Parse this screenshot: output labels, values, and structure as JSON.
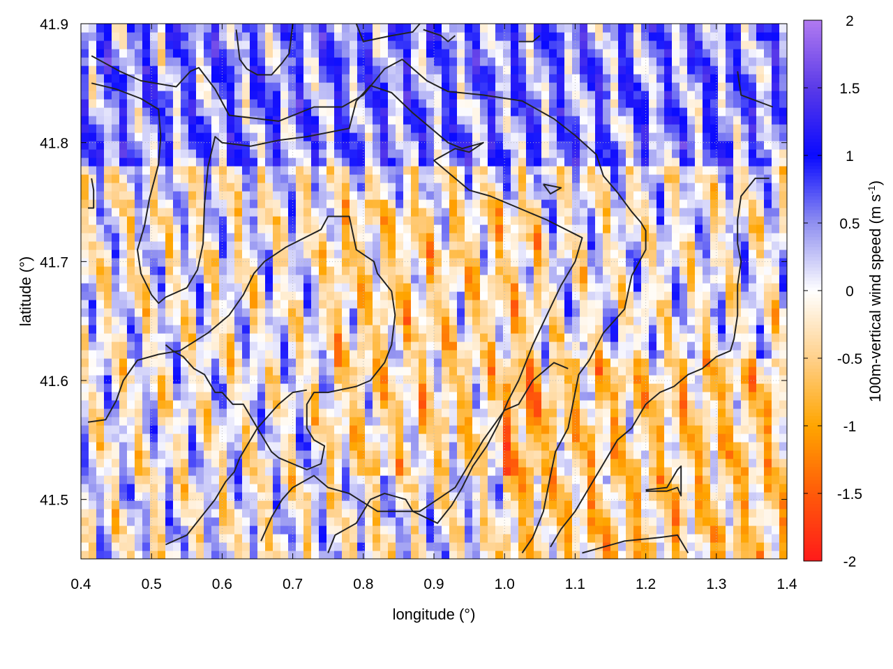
{
  "chart_data": {
    "type": "heatmap",
    "title": "",
    "xlabel": "longitude (°)",
    "ylabel": "latitude (°)",
    "colorbar_label": "100m-vertical wind speed (m s",
    "colorbar_label_sup": "-1",
    "colorbar_label_end": ")",
    "xlim": [
      0.4,
      1.4
    ],
    "ylim": [
      41.45,
      41.9
    ],
    "x_ticks": [
      0.4,
      0.5,
      0.6,
      0.7,
      0.8,
      0.9,
      1.0,
      1.1,
      1.2,
      1.3,
      1.4
    ],
    "x_tick_labels": [
      "0.4",
      "0.5",
      "0.6",
      "0.7",
      "0.8",
      "0.9",
      "1.0",
      "1.1",
      "1.2",
      "1.3",
      "1.4"
    ],
    "y_ticks": [
      41.5,
      41.6,
      41.7,
      41.8,
      41.9
    ],
    "y_tick_labels": [
      "41.5",
      "41.6",
      "41.7",
      "41.8",
      "41.9"
    ],
    "color_range": [
      -2,
      2
    ],
    "colorbar_ticks": [
      2,
      1.5,
      1,
      0.5,
      0,
      -0.5,
      -1,
      -1.5,
      -2
    ],
    "colorbar_tick_labels": [
      "2",
      "1.5",
      "1",
      "0.5",
      "0",
      "-0.5",
      "-1",
      "-1.5",
      "-2"
    ],
    "colormap": [
      {
        "value": -2,
        "color": "#ff1a1a"
      },
      {
        "value": -1.5,
        "color": "#ff5a0a"
      },
      {
        "value": -1,
        "color": "#ffa500"
      },
      {
        "value": -0.5,
        "color": "#ffd08a"
      },
      {
        "value": 0,
        "color": "#ffffff"
      },
      {
        "value": 0.5,
        "color": "#9090f0"
      },
      {
        "value": 1,
        "color": "#0a0aff"
      },
      {
        "value": 1.5,
        "color": "#5a3ae8"
      },
      {
        "value": 2,
        "color": "#b07af0"
      }
    ],
    "grid": true,
    "contour_color": "#222222",
    "contours": [
      [
        [
          0.415,
          41.873
        ],
        [
          0.455,
          41.86
        ],
        [
          0.485,
          41.852
        ],
        [
          0.535,
          41.847
        ],
        [
          0.555,
          41.86
        ],
        [
          0.567,
          41.863
        ],
        [
          0.59,
          41.845
        ],
        [
          0.61,
          41.823
        ],
        [
          0.68,
          41.818
        ],
        [
          0.73,
          41.83
        ],
        [
          0.77,
          41.83
        ],
        [
          0.8,
          41.84
        ],
        [
          0.83,
          41.862
        ],
        [
          0.855,
          41.87
        ],
        [
          0.89,
          41.852
        ],
        [
          0.92,
          41.843
        ],
        [
          0.97,
          41.84
        ],
        [
          1.025,
          41.835
        ],
        [
          1.07,
          41.82
        ],
        [
          1.1,
          41.806
        ],
        [
          1.13,
          41.79
        ],
        [
          1.14,
          41.772
        ],
        [
          1.16,
          41.758
        ],
        [
          1.18,
          41.742
        ],
        [
          1.193,
          41.733
        ],
        [
          1.2,
          41.726
        ],
        [
          1.2,
          41.71
        ],
        [
          1.18,
          41.688
        ],
        [
          1.17,
          41.66
        ],
        [
          1.14,
          41.64
        ],
        [
          1.12,
          41.617
        ],
        [
          1.105,
          41.605
        ],
        [
          1.1,
          41.59
        ],
        [
          1.09,
          41.56
        ],
        [
          1.072,
          41.54
        ],
        [
          1.065,
          41.52
        ],
        [
          1.055,
          41.49
        ],
        [
          1.04,
          41.468
        ],
        [
          1.025,
          41.455
        ]
      ],
      [
        [
          0.415,
          41.85
        ],
        [
          0.45,
          41.845
        ],
        [
          0.485,
          41.837
        ],
        [
          0.51,
          41.828
        ],
        [
          0.513,
          41.805
        ],
        [
          0.51,
          41.782
        ],
        [
          0.497,
          41.753
        ],
        [
          0.49,
          41.73
        ],
        [
          0.48,
          41.71
        ],
        [
          0.485,
          41.69
        ],
        [
          0.5,
          41.672
        ],
        [
          0.51,
          41.665
        ],
        [
          0.52,
          41.67
        ],
        [
          0.55,
          41.678
        ],
        [
          0.565,
          41.693
        ],
        [
          0.573,
          41.715
        ],
        [
          0.575,
          41.748
        ],
        [
          0.58,
          41.78
        ],
        [
          0.59,
          41.805
        ],
        [
          0.6,
          41.8
        ],
        [
          0.64,
          41.797
        ],
        [
          0.68,
          41.802
        ],
        [
          0.72,
          41.805
        ],
        [
          0.78,
          41.812
        ],
        [
          0.79,
          41.835
        ],
        [
          0.81,
          41.848
        ],
        [
          0.84,
          41.842
        ],
        [
          0.87,
          41.825
        ],
        [
          0.89,
          41.815
        ],
        [
          0.92,
          41.8
        ],
        [
          0.94,
          41.795
        ],
        [
          0.97,
          41.8
        ],
        [
          0.95,
          41.792
        ],
        [
          0.93,
          41.795
        ],
        [
          0.9,
          41.785
        ],
        [
          0.93,
          41.77
        ],
        [
          0.95,
          41.76
        ],
        [
          0.98,
          41.755
        ],
        [
          1.02,
          41.745
        ],
        [
          1.06,
          41.735
        ],
        [
          1.11,
          41.72
        ],
        [
          1.1,
          41.7
        ],
        [
          1.08,
          41.68
        ],
        [
          1.06,
          41.655
        ],
        [
          1.04,
          41.63
        ],
        [
          1.02,
          41.6
        ],
        [
          1.005,
          41.583
        ],
        [
          0.99,
          41.562
        ],
        [
          0.975,
          41.545
        ],
        [
          0.955,
          41.528
        ],
        [
          0.94,
          41.51
        ],
        [
          0.925,
          41.495
        ],
        [
          0.905,
          41.48
        ],
        [
          0.87,
          41.49
        ],
        [
          0.86,
          41.5
        ],
        [
          0.83,
          41.505
        ],
        [
          0.81,
          41.5
        ],
        [
          0.79,
          41.48
        ],
        [
          0.76,
          41.47
        ],
        [
          0.75,
          41.455
        ]
      ],
      [
        [
          0.41,
          41.565
        ],
        [
          0.435,
          41.567
        ],
        [
          0.45,
          41.583
        ],
        [
          0.46,
          41.6
        ],
        [
          0.48,
          41.617
        ],
        [
          0.51,
          41.622
        ],
        [
          0.54,
          41.625
        ],
        [
          0.58,
          41.64
        ],
        [
          0.61,
          41.655
        ],
        [
          0.63,
          41.672
        ],
        [
          0.645,
          41.69
        ],
        [
          0.66,
          41.7
        ],
        [
          0.69,
          41.712
        ],
        [
          0.74,
          41.727
        ],
        [
          0.75,
          41.738
        ],
        [
          0.78,
          41.738
        ],
        [
          0.79,
          41.71
        ],
        [
          0.815,
          41.7
        ],
        [
          0.82,
          41.69
        ],
        [
          0.84,
          41.675
        ],
        [
          0.845,
          41.655
        ],
        [
          0.84,
          41.63
        ],
        [
          0.83,
          41.615
        ],
        [
          0.81,
          41.6
        ],
        [
          0.79,
          41.595
        ],
        [
          0.75,
          41.59
        ],
        [
          0.73,
          41.59
        ],
        [
          0.72,
          41.58
        ],
        [
          0.72,
          41.56
        ],
        [
          0.73,
          41.55
        ],
        [
          0.745,
          41.545
        ],
        [
          0.74,
          41.53
        ],
        [
          0.72,
          41.525
        ],
        [
          0.7,
          41.53
        ],
        [
          0.68,
          41.535
        ],
        [
          0.67,
          41.54
        ],
        [
          0.65,
          41.56
        ],
        [
          0.64,
          41.57
        ],
        [
          0.63,
          41.58
        ],
        [
          0.615,
          41.58
        ],
        [
          0.6,
          41.59
        ],
        [
          0.59,
          41.59
        ],
        [
          0.575,
          41.605
        ],
        [
          0.56,
          41.61
        ],
        [
          0.545,
          41.62
        ],
        [
          0.53,
          41.625
        ],
        [
          0.52,
          41.63
        ]
      ],
      [
        [
          0.52,
          41.462
        ],
        [
          0.55,
          41.47
        ],
        [
          0.57,
          41.485
        ],
        [
          0.59,
          41.5
        ],
        [
          0.605,
          41.515
        ],
        [
          0.617,
          41.523
        ],
        [
          0.625,
          41.535
        ],
        [
          0.65,
          41.56
        ],
        [
          0.68,
          41.58
        ],
        [
          0.7,
          41.59
        ],
        [
          0.72,
          41.592
        ]
      ],
      [
        [
          0.655,
          41.465
        ],
        [
          0.67,
          41.485
        ],
        [
          0.685,
          41.5
        ],
        [
          0.7,
          41.51
        ],
        [
          0.73,
          41.52
        ],
        [
          0.75,
          41.51
        ],
        [
          0.78,
          41.505
        ],
        [
          0.82,
          41.49
        ],
        [
          0.86,
          41.49
        ],
        [
          0.88,
          41.49
        ],
        [
          0.93,
          41.51
        ],
        [
          0.95,
          41.53
        ],
        [
          0.97,
          41.55
        ],
        [
          1.0,
          41.575
        ],
        [
          1.02,
          41.58
        ],
        [
          1.04,
          41.6
        ],
        [
          1.07,
          41.615
        ],
        [
          1.09,
          41.61
        ]
      ],
      [
        [
          1.11,
          41.455
        ],
        [
          1.14,
          41.46
        ],
        [
          1.17,
          41.465
        ],
        [
          1.22,
          41.468
        ],
        [
          1.245,
          41.47
        ],
        [
          1.26,
          41.455
        ]
      ],
      [
        [
          1.2,
          41.507
        ],
        [
          1.23,
          41.507
        ],
        [
          1.245,
          41.51
        ],
        [
          1.25,
          41.503
        ],
        [
          1.25,
          41.52
        ],
        [
          1.25,
          41.528
        ],
        [
          1.245,
          41.525
        ],
        [
          1.23,
          41.51
        ],
        [
          1.2,
          41.508
        ]
      ],
      [
        [
          1.38,
          41.83
        ],
        [
          1.335,
          41.84
        ],
        [
          1.33,
          41.86
        ]
      ],
      [
        [
          1.375,
          41.77
        ],
        [
          1.355,
          41.77
        ],
        [
          1.335,
          41.755
        ],
        [
          1.33,
          41.735
        ],
        [
          1.33,
          41.715
        ],
        [
          1.335,
          41.7
        ],
        [
          1.33,
          41.68
        ],
        [
          1.33,
          41.655
        ],
        [
          1.325,
          41.635
        ],
        [
          1.32,
          41.625
        ],
        [
          1.3,
          41.62
        ],
        [
          1.28,
          41.61
        ],
        [
          1.26,
          41.605
        ],
        [
          1.24,
          41.595
        ],
        [
          1.22,
          41.59
        ],
        [
          1.2,
          41.58
        ],
        [
          1.18,
          41.56
        ],
        [
          1.16,
          41.55
        ],
        [
          1.14,
          41.53
        ],
        [
          1.12,
          41.51
        ],
        [
          1.1,
          41.49
        ],
        [
          1.08,
          41.475
        ],
        [
          1.065,
          41.46
        ]
      ],
      [
        [
          1.055,
          41.765
        ],
        [
          1.08,
          41.762
        ],
        [
          1.065,
          41.757
        ],
        [
          1.055,
          41.765
        ]
      ],
      [
        [
          0.415,
          41.77
        ],
        [
          0.418,
          41.76
        ],
        [
          0.418,
          41.745
        ],
        [
          0.41,
          41.745
        ]
      ],
      [
        [
          0.62,
          41.895
        ],
        [
          0.625,
          41.87
        ],
        [
          0.635,
          41.862
        ],
        [
          0.65,
          41.857
        ],
        [
          0.67,
          41.857
        ],
        [
          0.685,
          41.867
        ],
        [
          0.695,
          41.875
        ],
        [
          0.7,
          41.9
        ]
      ],
      [
        [
          0.79,
          41.9
        ],
        [
          0.8,
          41.885
        ],
        [
          0.84,
          41.89
        ],
        [
          0.87,
          41.893
        ],
        [
          0.88,
          41.9
        ]
      ],
      [
        [
          0.885,
          41.895
        ],
        [
          0.91,
          41.89
        ],
        [
          0.92,
          41.885
        ],
        [
          0.93,
          41.89
        ]
      ],
      [
        [
          1.02,
          41.885
        ],
        [
          1.04,
          41.885
        ],
        [
          1.05,
          41.89
        ]
      ]
    ]
  }
}
